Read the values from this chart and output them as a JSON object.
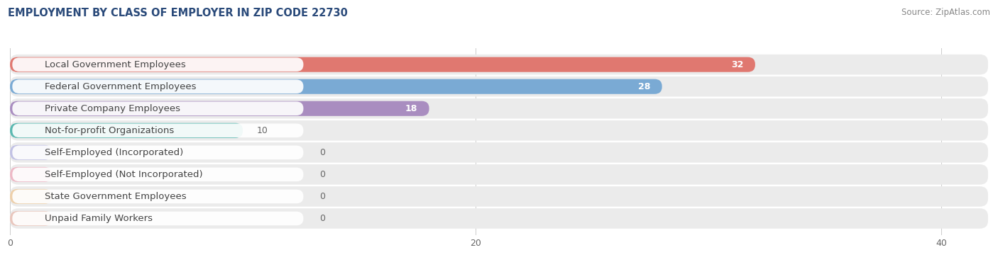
{
  "title": "EMPLOYMENT BY CLASS OF EMPLOYER IN ZIP CODE 22730",
  "source": "Source: ZipAtlas.com",
  "categories": [
    "Local Government Employees",
    "Federal Government Employees",
    "Private Company Employees",
    "Not-for-profit Organizations",
    "Self-Employed (Incorporated)",
    "Self-Employed (Not Incorporated)",
    "State Government Employees",
    "Unpaid Family Workers"
  ],
  "values": [
    32,
    28,
    18,
    10,
    0,
    0,
    0,
    0
  ],
  "bar_colors": [
    "#e07870",
    "#7aaad4",
    "#a98dc0",
    "#5ab8b0",
    "#a0a0e0",
    "#f090a8",
    "#f0bb78",
    "#e8a898"
  ],
  "zero_bar_colors": [
    "#c8c8e0",
    "#f0a8b8",
    "#f5c898",
    "#f0b0b0"
  ],
  "xlim_max": 42,
  "xticks": [
    0,
    20,
    40
  ],
  "bg_color": "#ffffff",
  "row_bg_color": "#ebebeb",
  "title_color": "#2a4a7a",
  "source_color": "#888888",
  "label_text_color": "#444444",
  "value_color_inside": "#ffffff",
  "value_color_outside": "#666666",
  "title_fontsize": 10.5,
  "source_fontsize": 8.5,
  "label_fontsize": 9.5,
  "value_fontsize": 9,
  "figsize": [
    14.06,
    3.77
  ],
  "dpi": 100
}
